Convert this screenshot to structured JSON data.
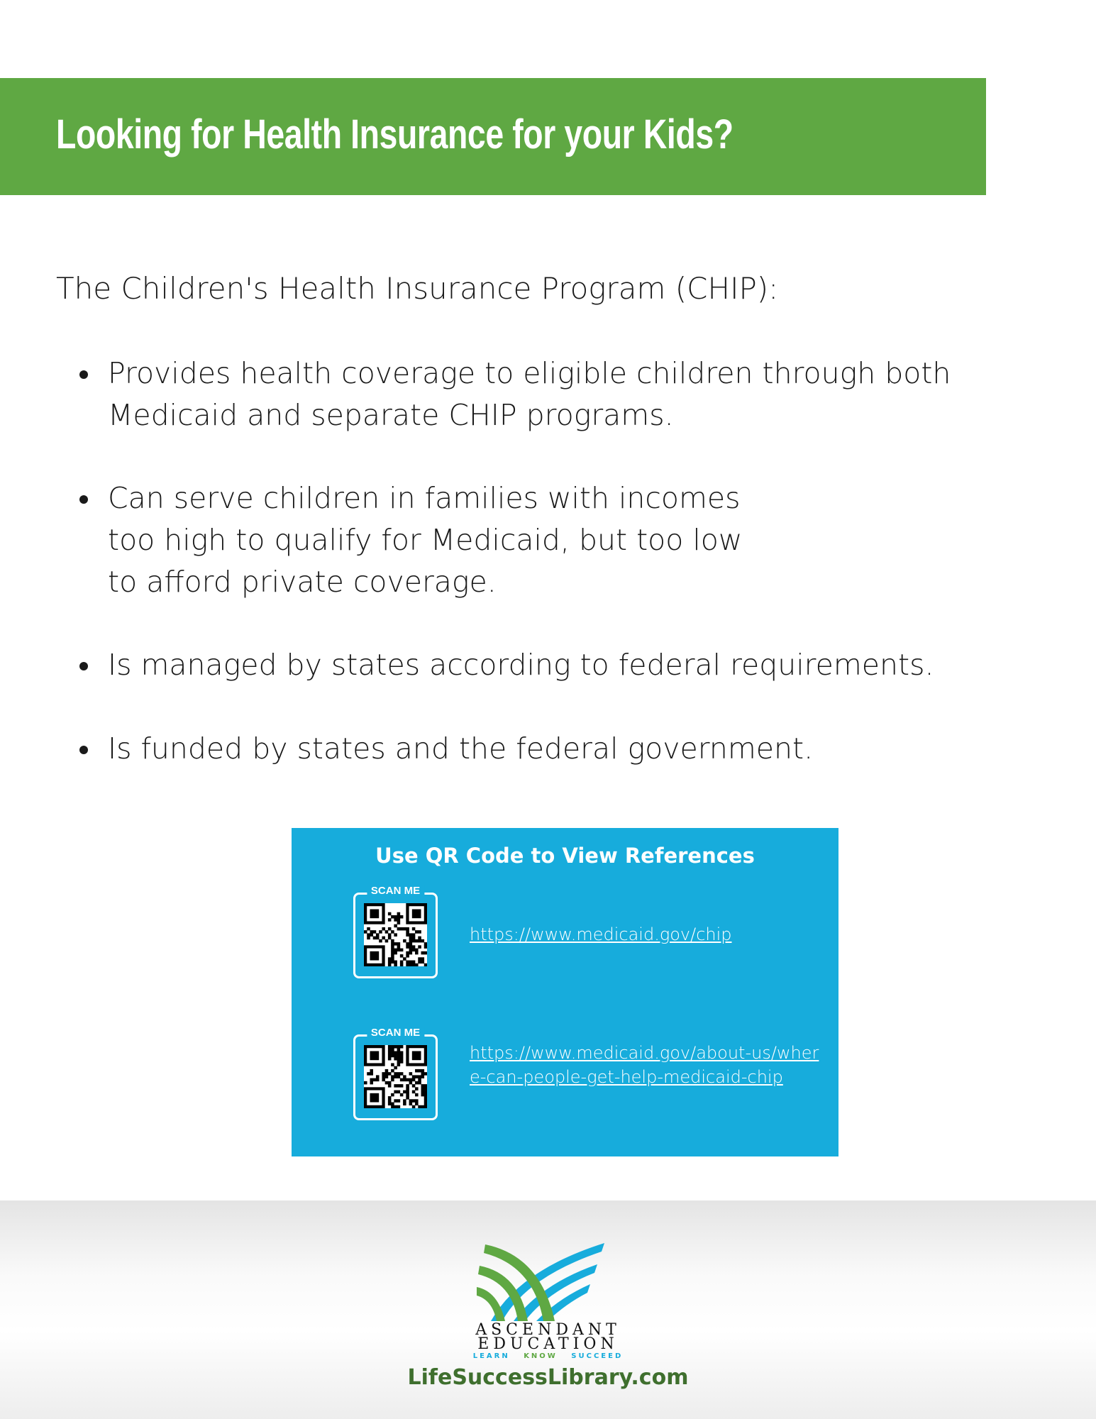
{
  "header": {
    "title": "Looking for Health Insurance for your Kids?",
    "color": "#5fa843"
  },
  "intro": "The Children's Health Insurance Program (CHIP):",
  "bullets": [
    " Provides health coverage to eligible children through both Medicaid and separate CHIP programs.",
    " Can serve children in families with incomes too high to qualify for Medicaid, but too low to afford private coverage.",
    " Is managed by states according to federal requirements.",
    " Is funded by states and the federal government."
  ],
  "references": {
    "title": "Use QR Code to View References",
    "color": "#17acdc",
    "items": [
      {
        "scan_label": "SCAN ME",
        "url": "https://www.medicaid.gov/chip"
      },
      {
        "scan_label": "SCAN ME",
        "url": "https://www.medicaid.gov/about-us/where-can-people-get-help-medicaid-chip"
      }
    ]
  },
  "footer": {
    "brand_line1": "ASCENDANT",
    "brand_line2": "EDUCATION",
    "tagline": [
      "LEARN",
      "KNOW",
      "SUCCEED"
    ],
    "website": "LifeSuccessLibrary.com"
  }
}
